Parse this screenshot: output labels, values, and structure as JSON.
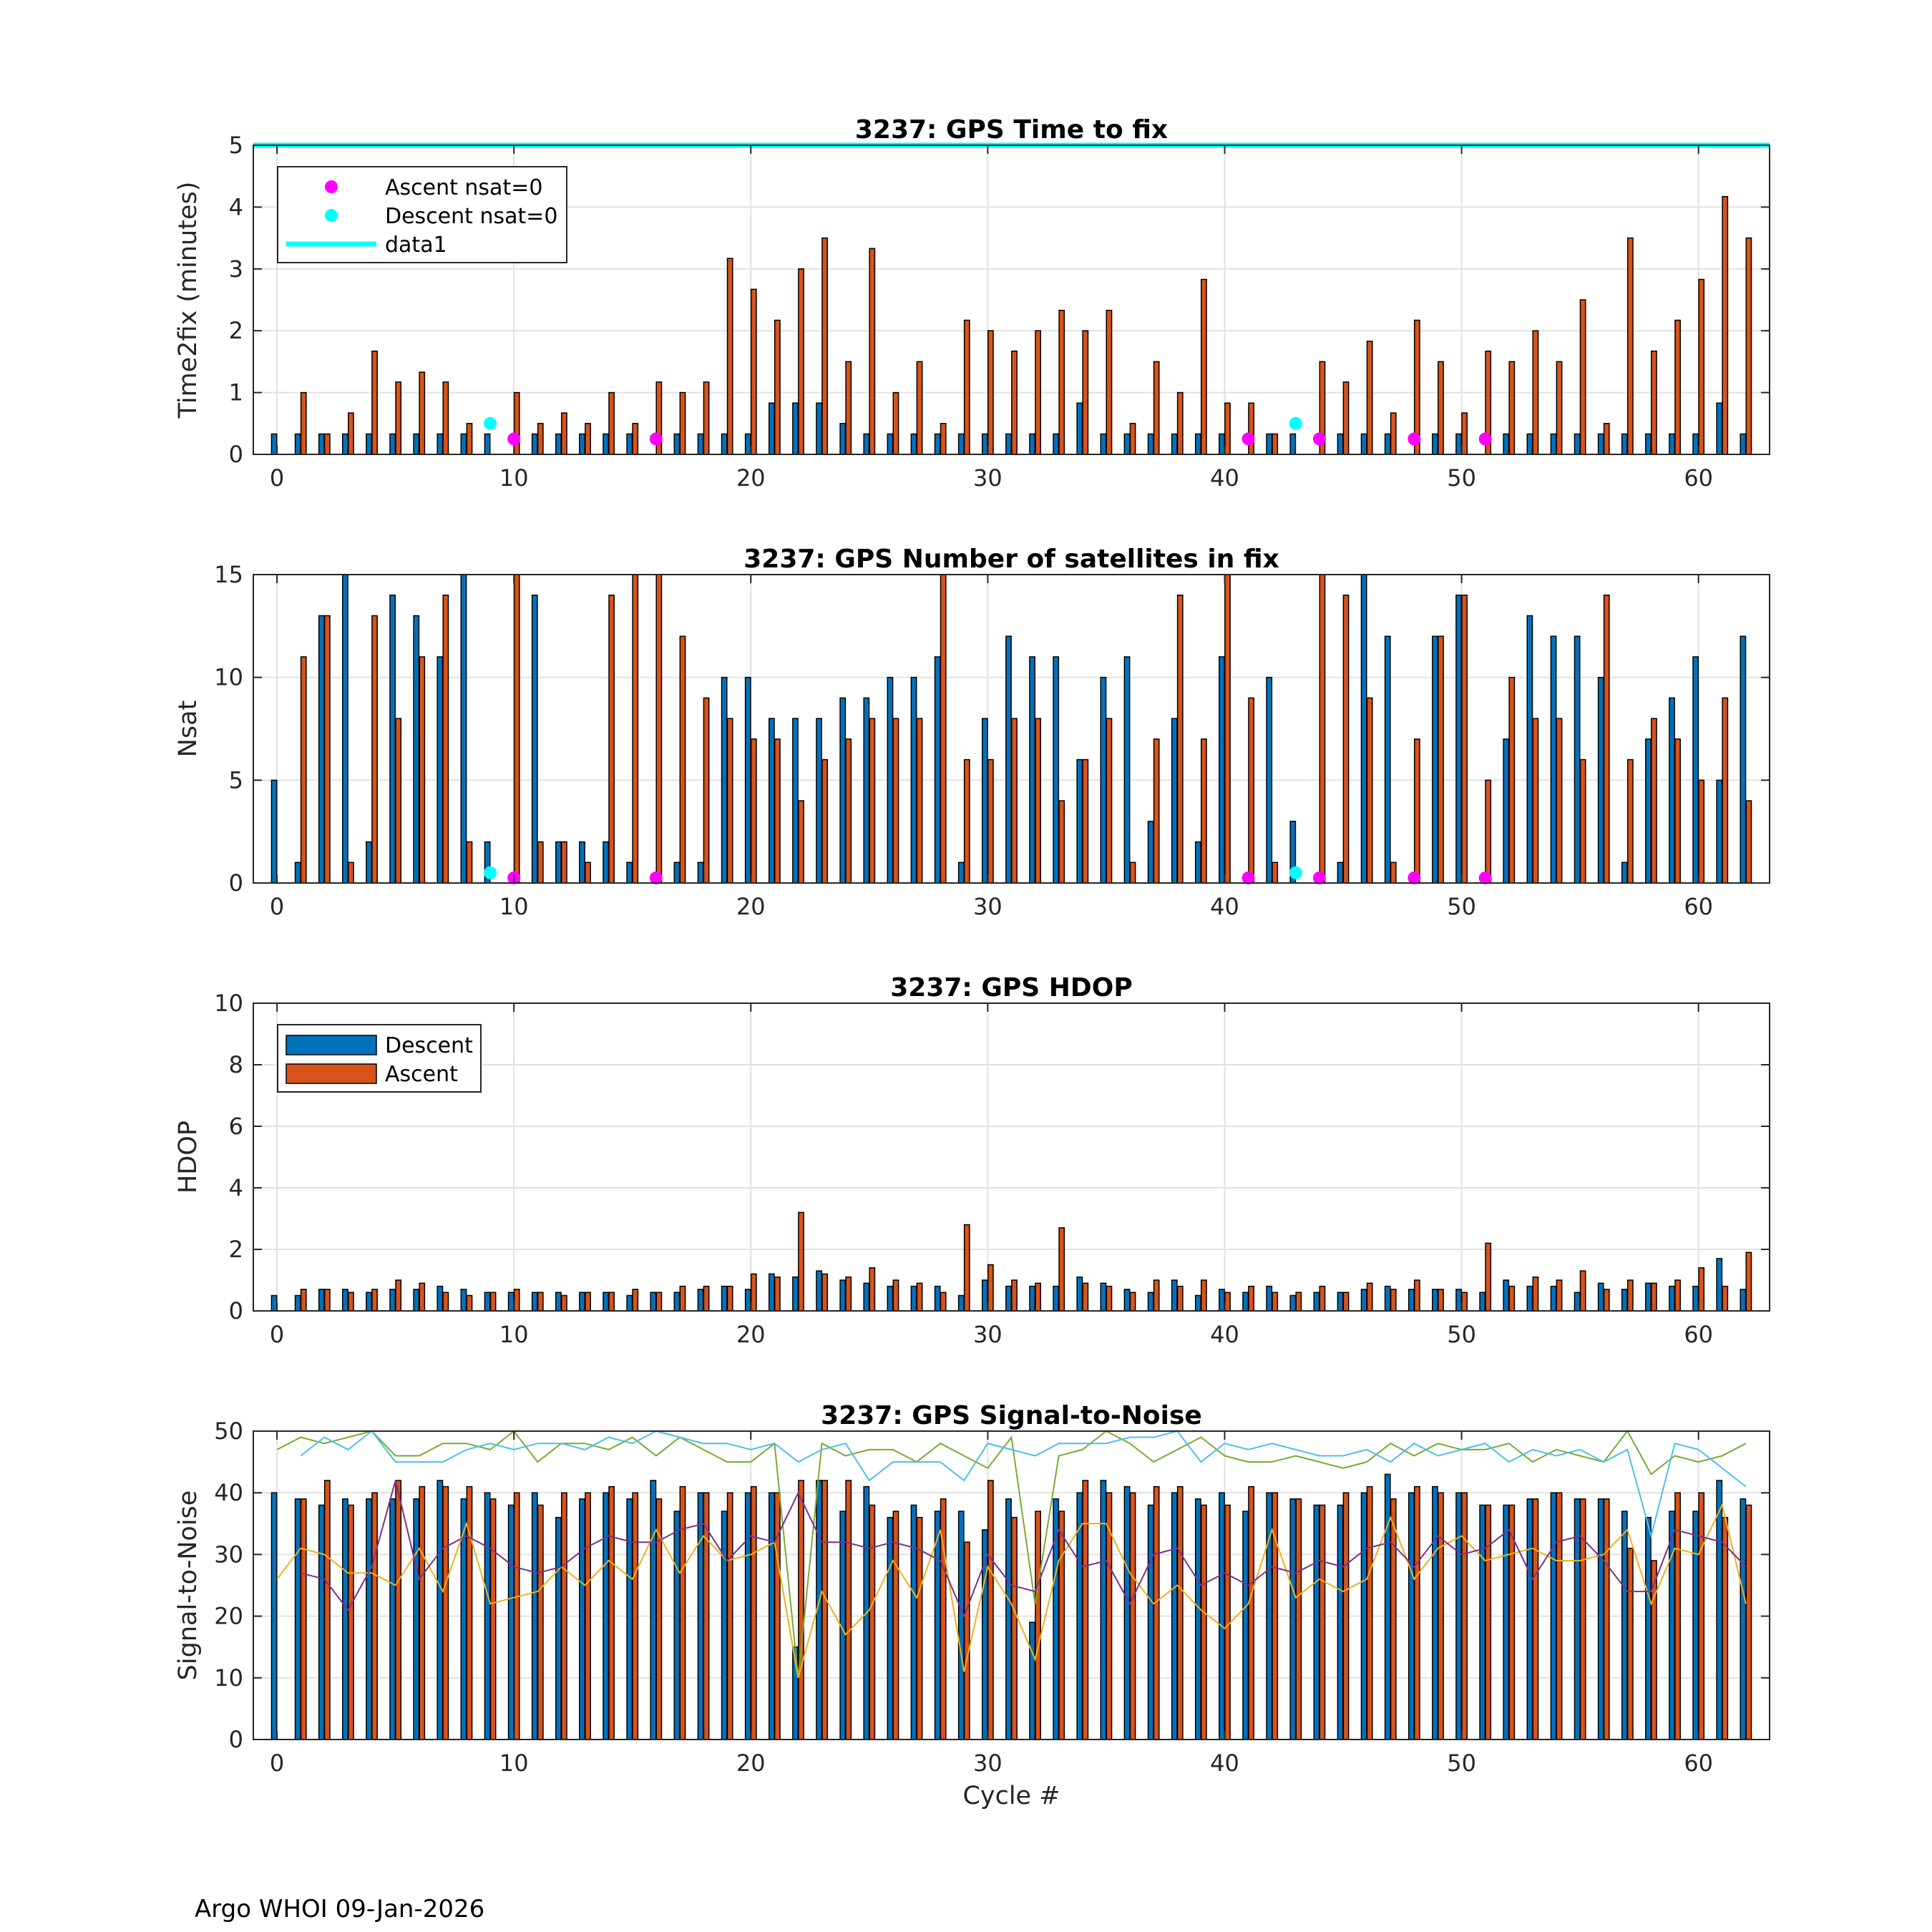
{
  "footer": "Argo WHOI 09-Jan-2026",
  "colors": {
    "descent": "#0072BD",
    "ascent": "#D95319",
    "ascent_nsat0": "#FF00FF",
    "descent_nsat0": "#00FFFF",
    "grid": "#e1e1e1",
    "snr_green": "#77AC30",
    "snr_cyan": "#4DBEEE",
    "snr_yellow": "#EDB120",
    "snr_purple": "#7E2F8E"
  },
  "chart_data": [
    {
      "id": "ttf",
      "type": "bar",
      "title": "3237: GPS Time to fix",
      "xlabel": "",
      "ylabel": "Time2fix (minutes)",
      "xlim": [
        -1,
        63
      ],
      "ylim": [
        0,
        5
      ],
      "xticks": [
        0,
        10,
        20,
        30,
        40,
        50,
        60
      ],
      "yticks": [
        0,
        1,
        2,
        3,
        4,
        5
      ],
      "grid": true,
      "legend": {
        "location": "top-left",
        "entries": [
          "Ascent nsat=0",
          "Descent nsat=0",
          "data1"
        ]
      },
      "cycles": [
        0,
        1,
        2,
        3,
        4,
        5,
        6,
        7,
        8,
        9,
        10,
        11,
        12,
        13,
        14,
        15,
        16,
        17,
        18,
        19,
        20,
        21,
        22,
        23,
        24,
        25,
        26,
        27,
        28,
        29,
        30,
        31,
        32,
        33,
        34,
        35,
        36,
        37,
        38,
        39,
        40,
        41,
        42,
        43,
        44,
        45,
        46,
        47,
        48,
        49,
        50,
        51,
        52,
        53,
        54,
        55,
        56,
        57,
        58,
        59,
        60,
        61,
        62
      ],
      "series": [
        {
          "name": "Descent",
          "values": [
            0.33,
            0.33,
            0.33,
            0.33,
            0.33,
            0.33,
            0.33,
            0.33,
            0.33,
            0.33,
            0,
            0.33,
            0.33,
            0.33,
            0.33,
            0.33,
            0,
            0.33,
            0.33,
            0.33,
            0.33,
            0.83,
            0.83,
            0.83,
            0.5,
            0.33,
            0.33,
            0.33,
            0.33,
            0.33,
            0.33,
            0.33,
            0.33,
            0.33,
            0.83,
            0.33,
            0.33,
            0.33,
            0.33,
            0.33,
            0.33,
            0,
            0.33,
            0.33,
            0,
            0.33,
            0.33,
            0.33,
            0,
            0.33,
            0.33,
            0,
            0.33,
            0.33,
            0.33,
            0.33,
            0.33,
            0.33,
            0.33,
            0.33,
            0.33,
            0.83,
            0.33
          ]
        },
        {
          "name": "Ascent",
          "values": [
            0,
            1.0,
            0.33,
            0.67,
            1.67,
            1.17,
            1.33,
            1.17,
            0.5,
            0,
            1.0,
            0.5,
            0.67,
            0.5,
            1.0,
            0.5,
            1.17,
            1.0,
            1.17,
            3.17,
            2.67,
            2.17,
            3.0,
            3.5,
            1.5,
            3.33,
            1.0,
            1.5,
            0.5,
            2.17,
            2.0,
            1.67,
            2.0,
            2.33,
            2.0,
            2.33,
            0.5,
            1.5,
            1.0,
            2.83,
            0.83,
            0.83,
            0.33,
            0,
            1.5,
            1.17,
            1.83,
            0.67,
            2.17,
            1.5,
            0.67,
            1.67,
            1.5,
            2.0,
            1.5,
            2.5,
            0.5,
            3.5,
            1.67,
            2.17,
            2.83,
            4.17,
            3.5
          ]
        }
      ],
      "ascent_nsat0_points": [
        {
          "x": 10,
          "y": 0.25
        },
        {
          "x": 16,
          "y": 0.25
        },
        {
          "x": 41,
          "y": 0.25
        },
        {
          "x": 44,
          "y": 0.25
        },
        {
          "x": 48,
          "y": 0.25
        },
        {
          "x": 51,
          "y": 0.25
        }
      ],
      "descent_nsat0_points": [
        {
          "x": 9,
          "y": 0.5
        },
        {
          "x": 43,
          "y": 0.5
        }
      ],
      "data1_line": {
        "y": 5
      }
    },
    {
      "id": "nsat",
      "type": "bar",
      "title": "3237: GPS Number of satellites in fix",
      "xlabel": "",
      "ylabel": "Nsat",
      "xlim": [
        -1,
        63
      ],
      "ylim": [
        0,
        15
      ],
      "xticks": [
        0,
        10,
        20,
        30,
        40,
        50,
        60
      ],
      "yticks": [
        0,
        5,
        10,
        15
      ],
      "grid": true,
      "series": [
        {
          "name": "Descent",
          "values": [
            5,
            1,
            13,
            15,
            2,
            14,
            13,
            11,
            15,
            2,
            0,
            14,
            2,
            2,
            2,
            1,
            0,
            1,
            1,
            10,
            10,
            8,
            8,
            8,
            9,
            9,
            10,
            10,
            11,
            1,
            8,
            12,
            11,
            11,
            6,
            10,
            11,
            3,
            8,
            2,
            11,
            0,
            10,
            3,
            0,
            1,
            15,
            12,
            0,
            12,
            14,
            0,
            7,
            13,
            12,
            12,
            10,
            1,
            7,
            9,
            11,
            5,
            12
          ]
        },
        {
          "name": "Ascent",
          "values": [
            0,
            11,
            13,
            1,
            13,
            8,
            11,
            14,
            2,
            0,
            15,
            2,
            2,
            1,
            14,
            15,
            15,
            12,
            9,
            8,
            7,
            7,
            4,
            6,
            7,
            8,
            8,
            8,
            15,
            6,
            6,
            8,
            8,
            4,
            6,
            8,
            1,
            7,
            14,
            7,
            15,
            9,
            1,
            0,
            15,
            14,
            9,
            1,
            7,
            12,
            14,
            5,
            10,
            8,
            8,
            6,
            14,
            6,
            8,
            7,
            5,
            9,
            4
          ]
        }
      ],
      "ascent_nsat0_points": [
        {
          "x": 10,
          "y": 0.25
        },
        {
          "x": 16,
          "y": 0.25
        },
        {
          "x": 41,
          "y": 0.25
        },
        {
          "x": 44,
          "y": 0.25
        },
        {
          "x": 48,
          "y": 0.25
        },
        {
          "x": 51,
          "y": 0.25
        }
      ],
      "descent_nsat0_points": [
        {
          "x": 9,
          "y": 0.5
        },
        {
          "x": 43,
          "y": 0.5
        }
      ]
    },
    {
      "id": "hdop",
      "type": "bar",
      "title": "3237: GPS HDOP",
      "xlabel": "",
      "ylabel": "HDOP",
      "xlim": [
        -1,
        63
      ],
      "ylim": [
        0,
        10
      ],
      "xticks": [
        0,
        10,
        20,
        30,
        40,
        50,
        60
      ],
      "yticks": [
        0,
        2,
        4,
        6,
        8,
        10
      ],
      "grid": true,
      "legend": {
        "location": "top-left",
        "entries": [
          "Descent",
          "Ascent"
        ]
      },
      "series": [
        {
          "name": "Descent",
          "values": [
            0.5,
            0.5,
            0.7,
            0.7,
            0.6,
            0.7,
            0.7,
            0.8,
            0.7,
            0.6,
            0.6,
            0.6,
            0.6,
            0.6,
            0.6,
            0.5,
            0.6,
            0.6,
            0.7,
            0.8,
            0.7,
            1.2,
            1.1,
            1.3,
            1.0,
            0.9,
            0.8,
            0.8,
            0.8,
            0.5,
            1.0,
            0.8,
            0.8,
            0.8,
            1.1,
            0.9,
            0.7,
            0.6,
            1.0,
            0.5,
            0.7,
            0.6,
            0.8,
            0.5,
            0.6,
            0.6,
            0.7,
            0.8,
            0.7,
            0.7,
            0.7,
            0.6,
            1.0,
            0.8,
            0.8,
            0.6,
            0.9,
            0.7,
            0.9,
            0.8,
            0.8,
            1.7,
            0.7
          ]
        },
        {
          "name": "Ascent",
          "values": [
            0,
            0.7,
            0.7,
            0.6,
            0.7,
            1.0,
            0.9,
            0.6,
            0.5,
            0.6,
            0.7,
            0.6,
            0.5,
            0.6,
            0.6,
            0.7,
            0.6,
            0.8,
            0.8,
            0.8,
            1.2,
            1.1,
            3.2,
            1.2,
            1.1,
            1.4,
            1.0,
            0.9,
            0.6,
            2.8,
            1.5,
            1.0,
            0.9,
            2.7,
            0.9,
            0.8,
            0.6,
            1.0,
            0.8,
            1.0,
            0.6,
            0.8,
            0.6,
            0.6,
            0.8,
            0.6,
            0.9,
            0.7,
            1.0,
            0.7,
            0.6,
            2.2,
            0.8,
            1.1,
            1.0,
            1.3,
            0.7,
            1.0,
            0.9,
            1.0,
            1.4,
            0.8,
            1.9
          ]
        }
      ]
    },
    {
      "id": "snr",
      "type": "bar",
      "title": "3237: GPS Signal-to-Noise",
      "xlabel": "Cycle #",
      "ylabel": "Signal-to-Noise",
      "xlim": [
        -1,
        63
      ],
      "ylim": [
        0,
        50
      ],
      "xticks": [
        0,
        10,
        20,
        30,
        40,
        50,
        60
      ],
      "yticks": [
        0,
        10,
        20,
        30,
        40,
        50
      ],
      "grid": true,
      "series": [
        {
          "name": "Descent",
          "values": [
            40,
            39,
            38,
            39,
            39,
            39,
            39,
            42,
            39,
            40,
            38,
            40,
            36,
            39,
            40,
            39,
            42,
            37,
            40,
            37,
            40,
            40,
            15,
            42,
            37,
            41,
            36,
            38,
            37,
            37,
            34,
            39,
            19,
            39,
            40,
            42,
            41,
            38,
            40,
            39,
            40,
            37,
            40,
            39,
            38,
            38,
            40,
            43,
            40,
            41,
            40,
            38,
            38,
            39,
            40,
            39,
            39,
            37,
            36,
            37,
            37,
            42,
            39
          ]
        },
        {
          "name": "Ascent",
          "values": [
            0,
            39,
            42,
            38,
            40,
            42,
            41,
            41,
            41,
            39,
            40,
            38,
            40,
            40,
            41,
            40,
            39,
            41,
            40,
            40,
            41,
            40,
            42,
            42,
            42,
            38,
            37,
            36,
            39,
            32,
            42,
            36,
            37,
            37,
            42,
            40,
            40,
            41,
            41,
            38,
            38,
            41,
            40,
            39,
            38,
            40,
            41,
            39,
            41,
            40,
            40,
            38,
            38,
            39,
            40,
            39,
            39,
            31,
            29,
            40,
            40,
            36,
            38
          ]
        }
      ],
      "lines": [
        {
          "name": "green",
          "values": [
            47,
            49,
            48,
            49,
            50,
            46,
            46,
            48,
            48,
            47,
            50,
            45,
            48,
            48,
            47,
            49,
            46,
            49,
            47,
            45,
            45,
            48,
            10,
            48,
            46,
            47,
            47,
            45,
            48,
            46,
            44,
            49,
            22,
            46,
            47,
            50,
            48,
            45,
            47,
            49,
            46,
            45,
            45,
            46,
            45,
            44,
            45,
            48,
            46,
            48,
            47,
            47,
            48,
            45,
            47,
            46,
            45,
            50,
            43,
            46,
            45,
            46,
            48
          ]
        },
        {
          "name": "cyan",
          "values": [
            null,
            46,
            49,
            47,
            50,
            45,
            45,
            45,
            47,
            48,
            47,
            48,
            48,
            47,
            49,
            48,
            50,
            49,
            48,
            48,
            47,
            48,
            45,
            47,
            48,
            42,
            45,
            45,
            45,
            42,
            48,
            47,
            46,
            48,
            48,
            48,
            49,
            49,
            50,
            45,
            48,
            47,
            48,
            47,
            46,
            46,
            47,
            45,
            48,
            46,
            47,
            48,
            45,
            47,
            46,
            47,
            45,
            47,
            33,
            48,
            47,
            44,
            41
          ]
        },
        {
          "name": "yellow",
          "values": [
            26,
            31,
            30,
            27,
            27,
            25,
            31,
            24,
            35,
            22,
            23,
            24,
            28,
            25,
            29,
            26,
            34,
            27,
            33,
            29,
            30,
            32,
            10,
            24,
            17,
            21,
            29,
            23,
            34,
            11,
            28,
            22,
            13,
            29,
            35,
            35,
            27,
            22,
            25,
            21,
            18,
            22,
            34,
            23,
            26,
            24,
            26,
            36,
            26,
            31,
            33,
            29,
            30,
            31,
            29,
            29,
            30,
            34,
            22,
            31,
            30,
            38,
            22
          ]
        },
        {
          "name": "purple",
          "values": [
            null,
            27,
            26,
            21,
            28,
            42,
            26,
            31,
            33,
            31,
            28,
            27,
            28,
            31,
            33,
            32,
            32,
            34,
            35,
            29,
            33,
            32,
            40,
            32,
            32,
            31,
            32,
            31,
            29,
            20,
            30,
            25,
            24,
            34,
            28,
            29,
            22,
            30,
            31,
            25,
            27,
            25,
            28,
            27,
            29,
            28,
            31,
            32,
            28,
            33,
            30,
            31,
            34,
            26,
            32,
            33,
            29,
            24,
            24,
            34,
            33,
            32,
            28
          ]
        }
      ]
    }
  ]
}
